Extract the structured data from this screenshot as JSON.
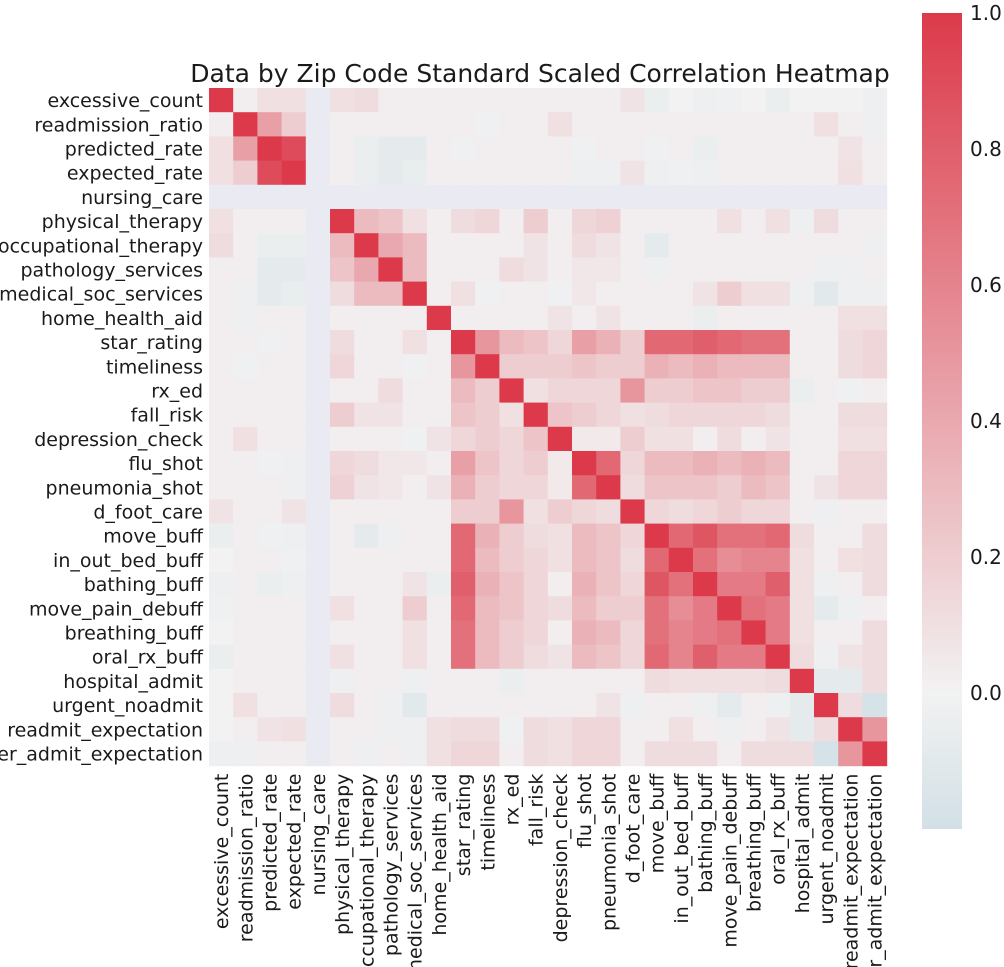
{
  "chart_data": {
    "type": "heatmap",
    "title": "Data by Zip Code Standard Scaled Correlation Heatmap",
    "labels": [
      "excessive_count",
      "readmission_ratio",
      "predicted_rate",
      "expected_rate",
      "nursing_care",
      "physical_therapy",
      "occupational_therapy",
      "pathology_services",
      "medical_soc_services",
      "home_health_aid",
      "star_rating",
      "timeliness",
      "rx_ed",
      "fall_risk",
      "depression_check",
      "flu_shot",
      "pneumonia_shot",
      "d_foot_care",
      "move_buff",
      "in_out_bed_buff",
      "bathing_buff",
      "move_pain_debuff",
      "breathing_buff",
      "oral_rx_buff",
      "hospital_admit",
      "urgent_noadmit",
      "readmit_expectation",
      "er_admit_expectation"
    ],
    "colorbar": {
      "ticks": [
        "0.0",
        "0.2",
        "0.4",
        "0.6",
        "0.8",
        "1.0"
      ],
      "range": [
        -0.2,
        1.0
      ]
    },
    "missing_label": "nursing_care",
    "values": [
      [
        1,
        0.02,
        0.1,
        0.1,
        null,
        0.1,
        0.12,
        0.02,
        0.02,
        0.02,
        0.02,
        0.02,
        0.02,
        0.02,
        0.02,
        0.02,
        0.02,
        0.08,
        -0.05,
        0,
        -0.03,
        -0.02,
        0,
        -0.05,
        0,
        0,
        0,
        -0.03
      ],
      [
        0.02,
        1,
        0.45,
        0.2,
        null,
        0.02,
        0.02,
        0.02,
        0.02,
        0.02,
        0.02,
        -0.02,
        0.02,
        0.02,
        0.1,
        0.02,
        0.02,
        0.02,
        0.02,
        0.02,
        0.02,
        0.02,
        0.02,
        0.02,
        0.02,
        0.1,
        0.02,
        -0.03
      ],
      [
        0.1,
        0.45,
        1,
        0.9,
        null,
        0.02,
        -0.05,
        -0.08,
        -0.08,
        0.02,
        -0.02,
        0.02,
        0.02,
        0.02,
        0.02,
        -0.02,
        0.02,
        0.02,
        -0.02,
        0.02,
        -0.05,
        0.02,
        0.02,
        0.02,
        0.02,
        0.02,
        0.08,
        0.02
      ],
      [
        0.1,
        0.2,
        0.9,
        1,
        null,
        0.02,
        -0.05,
        -0.08,
        -0.06,
        0.02,
        0.02,
        0.02,
        0.02,
        0.02,
        0.02,
        -0.03,
        -0.03,
        0.08,
        -0.03,
        -0.02,
        -0.03,
        0.02,
        0.02,
        0.02,
        0.02,
        0.02,
        0.1,
        0.02
      ],
      [
        null,
        null,
        null,
        null,
        null,
        null,
        null,
        null,
        null,
        null,
        null,
        null,
        null,
        null,
        null,
        null,
        null,
        null,
        null,
        null,
        null,
        null,
        null,
        null,
        null,
        null,
        null,
        null
      ],
      [
        0.1,
        0.02,
        0.02,
        0.02,
        null,
        1,
        0.3,
        0.25,
        0.1,
        0.02,
        0.12,
        0.15,
        0.02,
        0.2,
        0.02,
        0.15,
        0.18,
        0.02,
        0.02,
        0.02,
        0.02,
        0.1,
        0.02,
        0.1,
        -0.03,
        0.12,
        0.02,
        0.02
      ],
      [
        0.12,
        0.02,
        -0.05,
        -0.05,
        null,
        0.3,
        1,
        0.4,
        0.3,
        0.02,
        0.02,
        0.02,
        0.02,
        0.08,
        0.02,
        0.12,
        0.08,
        0.02,
        -0.08,
        0.02,
        0.02,
        0.02,
        0.02,
        0.02,
        0.02,
        0.02,
        0.02,
        -0.03
      ],
      [
        0.02,
        0.02,
        -0.08,
        -0.08,
        null,
        0.25,
        0.4,
        1,
        0.3,
        0.02,
        0.02,
        0.02,
        0.12,
        0.08,
        0.02,
        0.06,
        0.06,
        0.02,
        -0.03,
        0.02,
        0.02,
        0.02,
        0.02,
        0.02,
        0.02,
        -0.03,
        -0.03,
        0.02
      ],
      [
        0.02,
        -0.03,
        -0.08,
        -0.06,
        null,
        0.12,
        0.3,
        0.3,
        1,
        0.02,
        0.1,
        -0.02,
        0.02,
        0.02,
        -0.02,
        0.06,
        0.02,
        0.02,
        0.02,
        0.02,
        0.08,
        0.2,
        0.1,
        0.1,
        -0.03,
        -0.1,
        -0.03,
        -0.03
      ],
      [
        0.02,
        -0.03,
        0.02,
        0.02,
        null,
        0.02,
        0.02,
        0.02,
        0.02,
        1,
        0.02,
        0.02,
        0.02,
        0.02,
        0.08,
        0.02,
        0.08,
        0.02,
        0.02,
        0.02,
        -0.05,
        0.02,
        0.02,
        0.02,
        0.02,
        0.02,
        0.1,
        0.1
      ],
      [
        0.02,
        0.02,
        -0.02,
        0.02,
        null,
        0.12,
        0.02,
        0.02,
        0.1,
        0.02,
        1,
        0.5,
        0.3,
        0.25,
        0.15,
        0.45,
        0.35,
        0.2,
        0.75,
        0.75,
        0.8,
        0.75,
        0.7,
        0.7,
        0.02,
        0.02,
        0.12,
        0.15
      ],
      [
        0.02,
        -0.02,
        0.02,
        0.02,
        null,
        0.15,
        0.02,
        0.02,
        -0.02,
        0.02,
        0.5,
        1,
        0.2,
        0.2,
        0.2,
        0.25,
        0.2,
        0.2,
        0.35,
        0.3,
        0.35,
        0.3,
        0.3,
        0.3,
        0.02,
        0.02,
        0.12,
        0.15
      ],
      [
        0.02,
        0.02,
        0.02,
        0.02,
        null,
        0.02,
        0.02,
        0.12,
        0.02,
        0.02,
        0.3,
        0.2,
        1,
        0.1,
        0.15,
        0.15,
        0.15,
        0.5,
        0.2,
        0.2,
        0.25,
        0.25,
        0.2,
        0.2,
        -0.05,
        0.02,
        -0.02,
        0.02
      ],
      [
        0.02,
        0.02,
        0.02,
        0.02,
        null,
        0.2,
        0.08,
        0.08,
        0.02,
        0.02,
        0.25,
        0.2,
        0.1,
        1,
        0.25,
        0.2,
        0.15,
        0.1,
        0.12,
        0.15,
        0.15,
        0.15,
        0.15,
        0.12,
        0.02,
        0.02,
        0.12,
        0.12
      ],
      [
        0.02,
        0.1,
        0.02,
        0.02,
        null,
        0.02,
        0.02,
        0.02,
        -0.02,
        0.08,
        0.15,
        0.2,
        0.15,
        0.25,
        1,
        0.05,
        0.05,
        0.2,
        0.1,
        0.1,
        0.02,
        0.12,
        0.02,
        0.08,
        0.02,
        0.02,
        0.1,
        0.1
      ],
      [
        0.02,
        0.02,
        -0.02,
        -0.03,
        null,
        0.15,
        0.12,
        0.06,
        0.06,
        0.02,
        0.45,
        0.25,
        0.15,
        0.2,
        0.05,
        1,
        0.75,
        0.15,
        0.3,
        0.3,
        0.35,
        0.3,
        0.35,
        0.3,
        0.02,
        0.02,
        0.15,
        0.15
      ],
      [
        0.02,
        0.02,
        0.02,
        -0.03,
        null,
        0.18,
        0.08,
        0.06,
        0.02,
        0.08,
        0.35,
        0.2,
        0.15,
        0.15,
        0.05,
        0.75,
        1,
        0.12,
        0.25,
        0.25,
        0.25,
        0.2,
        0.3,
        0.25,
        0.02,
        0.08,
        0.15,
        0.15
      ],
      [
        0.08,
        0.02,
        0.02,
        0.08,
        null,
        0.02,
        0.02,
        0.02,
        0.02,
        0.02,
        0.2,
        0.2,
        0.5,
        0.1,
        0.2,
        0.15,
        0.12,
        1,
        0.15,
        0.12,
        0.15,
        0.2,
        0.15,
        0.15,
        0.02,
        -0.03,
        0.02,
        0.02
      ],
      [
        -0.05,
        0.02,
        -0.02,
        -0.03,
        null,
        0.02,
        -0.08,
        -0.03,
        0.02,
        0.02,
        0.75,
        0.35,
        0.2,
        0.12,
        0.1,
        0.3,
        0.25,
        0.15,
        1,
        0.75,
        0.85,
        0.7,
        0.7,
        0.75,
        0.12,
        0.02,
        0.02,
        0.12
      ],
      [
        0,
        0.02,
        0.02,
        -0.02,
        null,
        0.02,
        0.02,
        0.02,
        0.02,
        0.02,
        0.75,
        0.3,
        0.2,
        0.15,
        0.1,
        0.3,
        0.25,
        0.12,
        0.75,
        1,
        0.7,
        0.55,
        0.6,
        0.6,
        0.1,
        0.02,
        0.1,
        0.12
      ],
      [
        -0.03,
        0.02,
        -0.05,
        -0.03,
        null,
        0.02,
        0.02,
        0.02,
        0.08,
        -0.05,
        0.8,
        0.35,
        0.25,
        0.15,
        0.02,
        0.35,
        0.25,
        0.15,
        0.85,
        0.7,
        1,
        0.65,
        0.65,
        0.8,
        0.1,
        -0.03,
        0.02,
        0.12
      ],
      [
        -0.02,
        0.02,
        0.02,
        0.02,
        null,
        0.1,
        0.02,
        0.02,
        0.2,
        0.02,
        0.75,
        0.3,
        0.25,
        0.15,
        0.12,
        0.3,
        0.2,
        0.2,
        0.7,
        0.55,
        0.65,
        1,
        0.7,
        0.65,
        0.1,
        -0.08,
        -0.03,
        0.02
      ],
      [
        0,
        0.02,
        0.02,
        0.02,
        null,
        0.02,
        0.02,
        0.02,
        0.1,
        0.02,
        0.7,
        0.3,
        0.2,
        0.15,
        0.02,
        0.35,
        0.3,
        0.15,
        0.7,
        0.6,
        0.65,
        0.7,
        1,
        0.65,
        0.1,
        0.02,
        0.02,
        0.12
      ],
      [
        -0.05,
        0.02,
        0.02,
        0.02,
        null,
        0.1,
        0.02,
        0.02,
        0.1,
        0.02,
        0.7,
        0.3,
        0.2,
        0.12,
        0.08,
        0.3,
        0.25,
        0.15,
        0.75,
        0.6,
        0.8,
        0.65,
        0.65,
        1,
        0.12,
        -0.03,
        0.08,
        0.12
      ],
      [
        0,
        0.02,
        0.02,
        0.02,
        null,
        -0.03,
        0.02,
        0.02,
        -0.03,
        0.02,
        0.02,
        0.02,
        -0.05,
        0.02,
        0.02,
        0.02,
        0.02,
        0.02,
        0.12,
        0.1,
        0.1,
        0.1,
        0.1,
        0.12,
        1,
        -0.08,
        -0.08,
        0.12
      ],
      [
        0,
        0.1,
        0.02,
        0.02,
        null,
        0.12,
        0.02,
        -0.03,
        -0.1,
        0.02,
        0.02,
        0.02,
        0.02,
        0.02,
        0.02,
        0.02,
        0.08,
        -0.03,
        0.02,
        0.02,
        -0.03,
        -0.08,
        0.02,
        -0.03,
        -0.08,
        1,
        0.12,
        -0.18
      ],
      [
        0,
        0.02,
        0.08,
        0.1,
        null,
        0.02,
        0.02,
        -0.03,
        -0.03,
        0.1,
        0.12,
        0.12,
        -0.02,
        0.12,
        0.1,
        0.15,
        0.15,
        0.02,
        0.02,
        0.1,
        0.02,
        -0.03,
        0.02,
        0.08,
        -0.08,
        0.12,
        1,
        0.5
      ],
      [
        -0.03,
        -0.03,
        0.02,
        0.02,
        null,
        0.02,
        -0.03,
        0.02,
        -0.03,
        0.1,
        0.15,
        0.15,
        0.02,
        0.12,
        0.1,
        0.15,
        0.15,
        0.02,
        0.12,
        0.12,
        0.12,
        0.02,
        0.12,
        0.12,
        0.12,
        -0.18,
        0.5,
        1
      ]
    ]
  },
  "colors": {
    "negative": "#d2e0e6",
    "neutral": "#f2f2f2",
    "positive": "#dc3a4a",
    "missing": "#eaeaf2"
  }
}
